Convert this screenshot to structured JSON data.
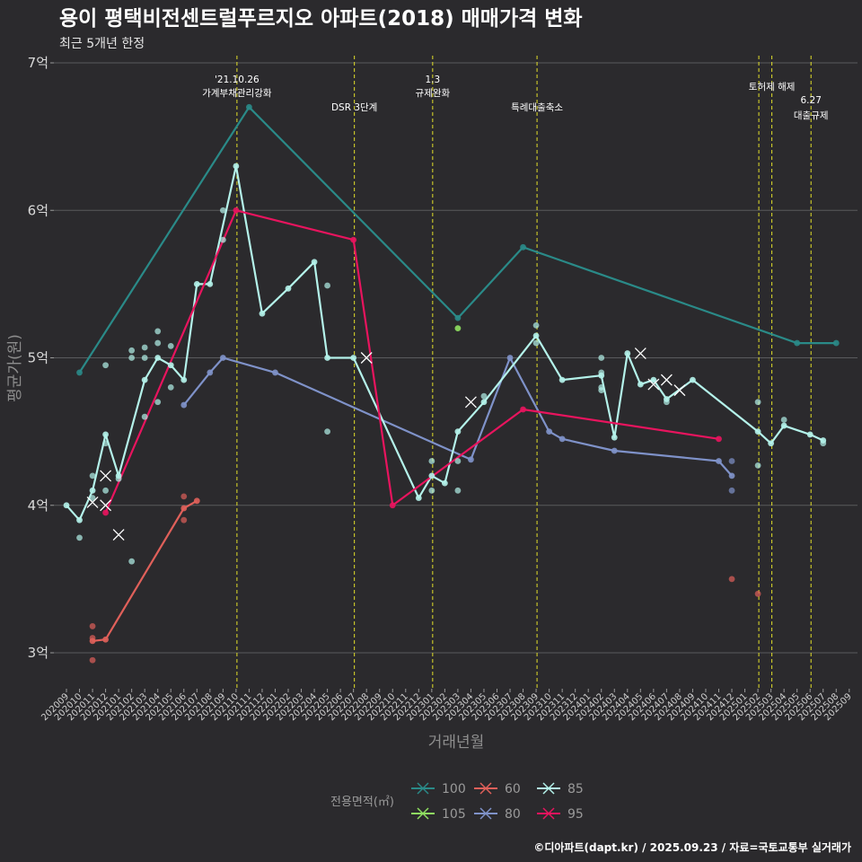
{
  "chart_data": {
    "type": "line",
    "title": "용이 평택비전센트럴푸르지오 아파트(2018) 매매가격 변화",
    "subtitle": "최근 5개년 한정",
    "xlabel": "거래년월",
    "ylabel": "평균가(원)",
    "caption": "©디아파트(dapt.kr) / 2025.09.23 / 자료=국토교통부 실거래가",
    "ylim": [
      2.75,
      7.0
    ],
    "yticks": [
      {
        "value": 3,
        "label": "3억"
      },
      {
        "value": 4,
        "label": "4억"
      },
      {
        "value": 5,
        "label": "5억"
      },
      {
        "value": 6,
        "label": "6억"
      },
      {
        "value": 7,
        "label": "7억"
      }
    ],
    "categories": [
      "202009",
      "202010",
      "202011",
      "202012",
      "202101",
      "202102",
      "202103",
      "202104",
      "202105",
      "202106",
      "202107",
      "202108",
      "202109",
      "202110",
      "202111",
      "202112",
      "202201",
      "202202",
      "202203",
      "202204",
      "202205",
      "202206",
      "202207",
      "202208",
      "202209",
      "202210",
      "202211",
      "202212",
      "202301",
      "202302",
      "202303",
      "202304",
      "202305",
      "202306",
      "202307",
      "202308",
      "202309",
      "202310",
      "202311",
      "202312",
      "202401",
      "202402",
      "202403",
      "202404",
      "202405",
      "202406",
      "202407",
      "202408",
      "202409",
      "202410",
      "202411",
      "202412",
      "202501",
      "202502",
      "202503",
      "202504",
      "202505",
      "202506",
      "202507",
      "202508",
      "202509"
    ],
    "annotations": [
      {
        "x": 13.0,
        "lines": [
          "'21.10.26",
          "가계부채관리강화"
        ],
        "row": 0
      },
      {
        "x": 22.0,
        "lines": [
          "DSR 3단계"
        ],
        "row": 2
      },
      {
        "x": 28.0,
        "lines": [
          "1.3",
          "규제완화"
        ],
        "row": 0
      },
      {
        "x": 36.0,
        "lines": [
          "특례대출축소"
        ],
        "row": 2
      },
      {
        "x": 53.0,
        "lines": [],
        "row": 0
      },
      {
        "x": 54.0,
        "lines": [
          "토허제 해제"
        ],
        "row": 1
      },
      {
        "x": 57.0,
        "lines": [
          "6.27",
          "대출규제"
        ],
        "row": 3
      }
    ],
    "legend_title": "전용면적(㎡)",
    "series": [
      {
        "name": "100",
        "color": "#2a8a88",
        "points": [
          [
            1,
            4.9
          ],
          [
            14,
            6.7
          ],
          [
            30,
            5.27
          ],
          [
            35,
            5.75
          ],
          [
            56,
            5.1
          ],
          [
            59,
            5.1
          ]
        ]
      },
      {
        "name": "105",
        "color": "#8fe061",
        "points": [
          [
            30,
            5.2
          ]
        ]
      },
      {
        "name": "60",
        "color": "#e0605a",
        "points": [
          [
            2,
            3.08
          ],
          [
            3,
            3.09
          ],
          [
            9,
            3.98
          ],
          [
            10,
            4.03
          ]
        ]
      },
      {
        "name": "80",
        "color": "#7f92c9",
        "points": [
          [
            9,
            4.68
          ],
          [
            11,
            4.9
          ],
          [
            12,
            5.0
          ],
          [
            16,
            4.9
          ],
          [
            31,
            4.31
          ],
          [
            34,
            5.0
          ],
          [
            37,
            4.5
          ],
          [
            38,
            4.45
          ],
          [
            42,
            4.37
          ],
          [
            50,
            4.3
          ],
          [
            51,
            4.2
          ]
        ]
      },
      {
        "name": "85",
        "color": "#b4f2ea",
        "points": [
          [
            0,
            4.0
          ],
          [
            1,
            3.9
          ],
          [
            2,
            4.1
          ],
          [
            3,
            4.48
          ],
          [
            4,
            4.2
          ],
          [
            6,
            4.85
          ],
          [
            7,
            5.0
          ],
          [
            8,
            4.95
          ],
          [
            9,
            4.85
          ],
          [
            10,
            5.5
          ],
          [
            11,
            5.5
          ],
          [
            13,
            6.3
          ],
          [
            15,
            5.3
          ],
          [
            17,
            5.47
          ],
          [
            19,
            5.65
          ],
          [
            20,
            5.0
          ],
          [
            22,
            5.0
          ],
          [
            27,
            4.05
          ],
          [
            28,
            4.2
          ],
          [
            29,
            4.15
          ],
          [
            30,
            4.5
          ],
          [
            32,
            4.7
          ],
          [
            36,
            5.15
          ],
          [
            38,
            4.85
          ],
          [
            41,
            4.88
          ],
          [
            42,
            4.46
          ],
          [
            43,
            5.03
          ],
          [
            44,
            4.82
          ],
          [
            45,
            4.85
          ],
          [
            46,
            4.72
          ],
          [
            48,
            4.85
          ],
          [
            53,
            4.5
          ],
          [
            54,
            4.42
          ],
          [
            55,
            4.54
          ],
          [
            57,
            4.48
          ],
          [
            58,
            4.44
          ]
        ]
      },
      {
        "name": "95",
        "color": "#e8145e",
        "points": [
          [
            3,
            3.95
          ],
          [
            13,
            6.0
          ],
          [
            22,
            5.8
          ],
          [
            25,
            4.0
          ],
          [
            35,
            4.65
          ],
          [
            50,
            4.45
          ]
        ]
      }
    ],
    "scatter": [
      {
        "series": "85",
        "x": 1,
        "y": 3.78
      },
      {
        "series": "85",
        "x": 2,
        "y": 4.2
      },
      {
        "series": "85",
        "x": 2,
        "y": 4.05
      },
      {
        "series": "85",
        "x": 3,
        "y": 4.95
      },
      {
        "series": "85",
        "x": 3,
        "y": 4.42
      },
      {
        "series": "85",
        "x": 3,
        "y": 4.1
      },
      {
        "series": "85",
        "x": 4,
        "y": 4.18
      },
      {
        "series": "85",
        "x": 5,
        "y": 5.05
      },
      {
        "series": "85",
        "x": 5,
        "y": 5.0
      },
      {
        "series": "85",
        "x": 5,
        "y": 3.62
      },
      {
        "series": "85",
        "x": 6,
        "y": 5.07
      },
      {
        "series": "85",
        "x": 6,
        "y": 5.0
      },
      {
        "series": "85",
        "x": 6,
        "y": 4.6
      },
      {
        "series": "85",
        "x": 7,
        "y": 5.18
      },
      {
        "series": "85",
        "x": 7,
        "y": 5.1
      },
      {
        "series": "85",
        "x": 7,
        "y": 4.7
      },
      {
        "series": "85",
        "x": 8,
        "y": 5.08
      },
      {
        "series": "85",
        "x": 8,
        "y": 4.8
      },
      {
        "series": "85",
        "x": 12,
        "y": 6.0
      },
      {
        "series": "85",
        "x": 12,
        "y": 5.8
      },
      {
        "series": "85",
        "x": 20,
        "y": 5.49
      },
      {
        "series": "85",
        "x": 20,
        "y": 4.5
      },
      {
        "series": "85",
        "x": 28,
        "y": 4.1
      },
      {
        "series": "85",
        "x": 28,
        "y": 4.3
      },
      {
        "series": "85",
        "x": 30,
        "y": 4.3
      },
      {
        "series": "85",
        "x": 30,
        "y": 4.1
      },
      {
        "series": "85",
        "x": 32,
        "y": 4.74
      },
      {
        "series": "85",
        "x": 36,
        "y": 5.22
      },
      {
        "series": "85",
        "x": 36,
        "y": 5.1
      },
      {
        "series": "85",
        "x": 41,
        "y": 5.0
      },
      {
        "series": "85",
        "x": 41,
        "y": 4.9
      },
      {
        "series": "85",
        "x": 41,
        "y": 4.8
      },
      {
        "series": "85",
        "x": 41,
        "y": 4.78
      },
      {
        "series": "85",
        "x": 46,
        "y": 4.7
      },
      {
        "series": "85",
        "x": 53,
        "y": 4.7
      },
      {
        "series": "85",
        "x": 53,
        "y": 4.27
      },
      {
        "series": "85",
        "x": 55,
        "y": 4.58
      },
      {
        "series": "85",
        "x": 58,
        "y": 4.42
      },
      {
        "series": "80",
        "x": 51,
        "y": 4.1
      },
      {
        "series": "80",
        "x": 51,
        "y": 4.3
      },
      {
        "series": "60",
        "x": 2,
        "y": 3.18
      },
      {
        "series": "60",
        "x": 2,
        "y": 3.1
      },
      {
        "series": "60",
        "x": 2,
        "y": 2.95
      },
      {
        "series": "60",
        "x": 9,
        "y": 4.06
      },
      {
        "series": "60",
        "x": 9,
        "y": 3.9
      },
      {
        "series": "60",
        "x": 51,
        "y": 3.5
      },
      {
        "series": "60",
        "x": 53,
        "y": 3.4
      }
    ],
    "cross_marks": [
      {
        "series": "85",
        "x": 2,
        "y": 4.02
      },
      {
        "series": "85",
        "x": 3,
        "y": 4.0
      },
      {
        "series": "85",
        "x": 3,
        "y": 4.2
      },
      {
        "series": "85",
        "x": 4,
        "y": 3.8
      },
      {
        "series": "85",
        "x": 23,
        "y": 5.0
      },
      {
        "series": "85",
        "x": 31,
        "y": 4.7
      },
      {
        "series": "85",
        "x": 44,
        "y": 5.03
      },
      {
        "series": "85",
        "x": 45,
        "y": 4.82
      },
      {
        "series": "85",
        "x": 46,
        "y": 4.85
      },
      {
        "series": "85",
        "x": 47,
        "y": 4.78
      }
    ]
  }
}
